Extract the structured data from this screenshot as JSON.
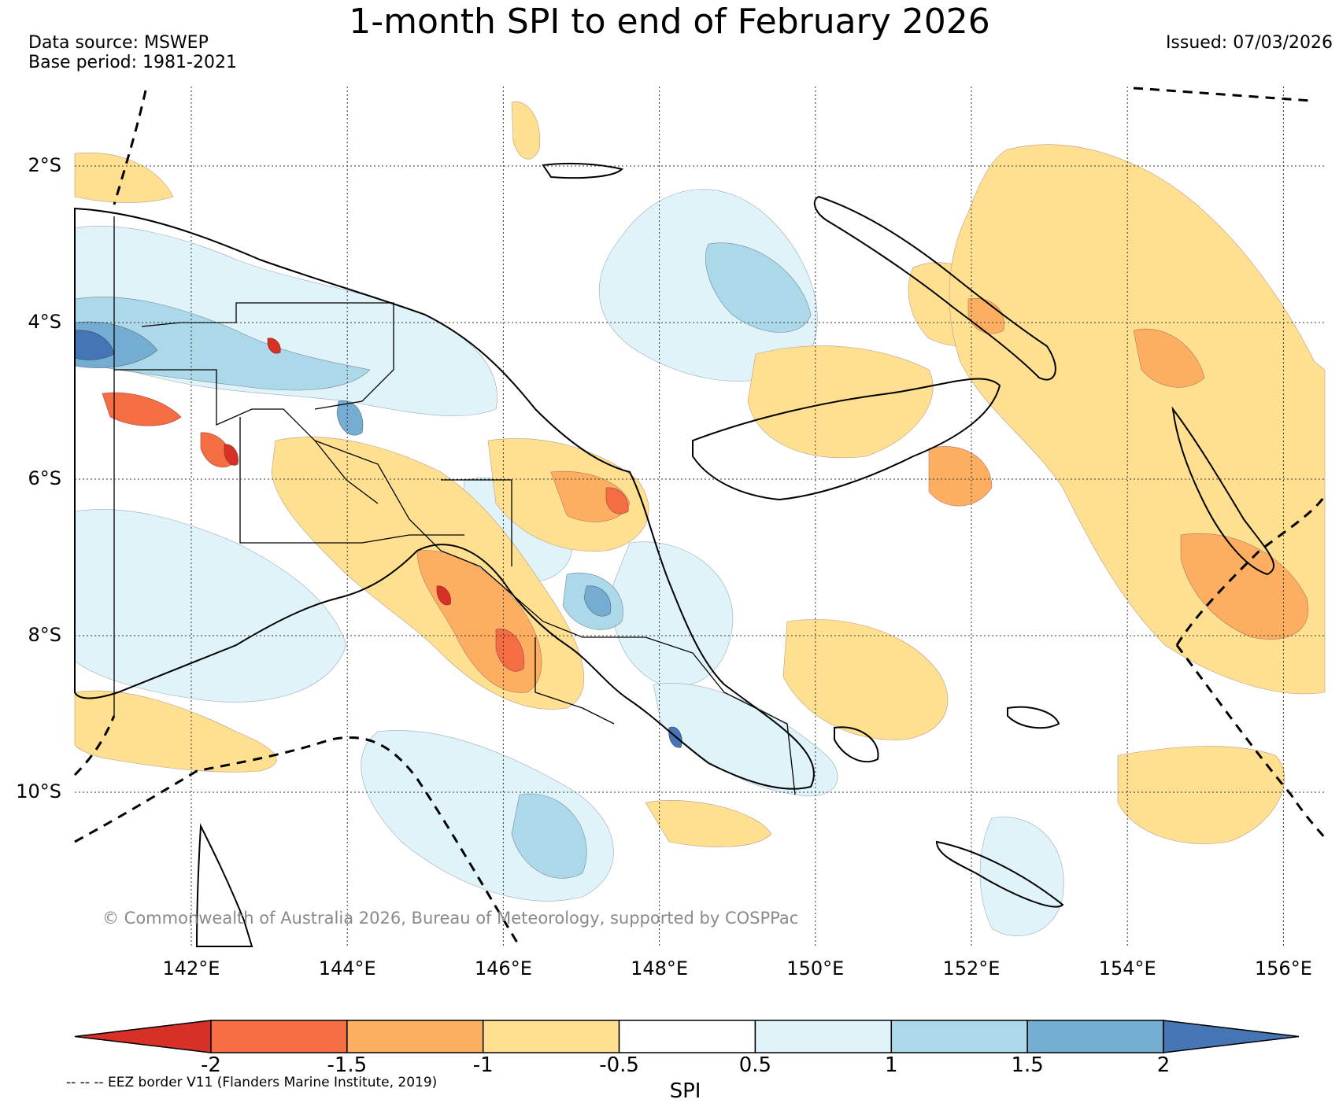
{
  "title": "1-month SPI to end of February 2026",
  "data_source": "Data source: MSWEP",
  "base_period": "Base period: 1981-2021",
  "issued": "Issued: 07/03/2026",
  "copyright": "© Commonwealth of Australia 2026, Bureau of Meteorology, supported by COSPPac",
  "eez_note": "-- -- -- EEZ border V11 (Flanders Marine Institute, 2019)",
  "latitudes": [
    {
      "label": "2°S",
      "lat": -2
    },
    {
      "label": "4°S",
      "lat": -4
    },
    {
      "label": "6°S",
      "lat": -6
    },
    {
      "label": "8°S",
      "lat": -8
    },
    {
      "label": "10°S",
      "lat": -10
    }
  ],
  "longitudes": [
    {
      "label": "142°E",
      "lon": 142
    },
    {
      "label": "144°E",
      "lon": 144
    },
    {
      "label": "146°E",
      "lon": 146
    },
    {
      "label": "148°E",
      "lon": 148
    },
    {
      "label": "150°E",
      "lon": 150
    },
    {
      "label": "152°E",
      "lon": 152
    },
    {
      "label": "154°E",
      "lon": 154
    },
    {
      "label": "156°E",
      "lon": 156
    }
  ],
  "colorbar": {
    "title": "SPI",
    "ticks": [
      "-2",
      "-1.5",
      "-1",
      "-0.5",
      "0.5",
      "1",
      "1.5",
      "2"
    ],
    "colors": [
      "#d73027",
      "#f46d43",
      "#fdae61",
      "#fee090",
      "#ffffff",
      "#e0f3f8",
      "#abd9e9",
      "#74add1",
      "#4575b4"
    ]
  }
}
